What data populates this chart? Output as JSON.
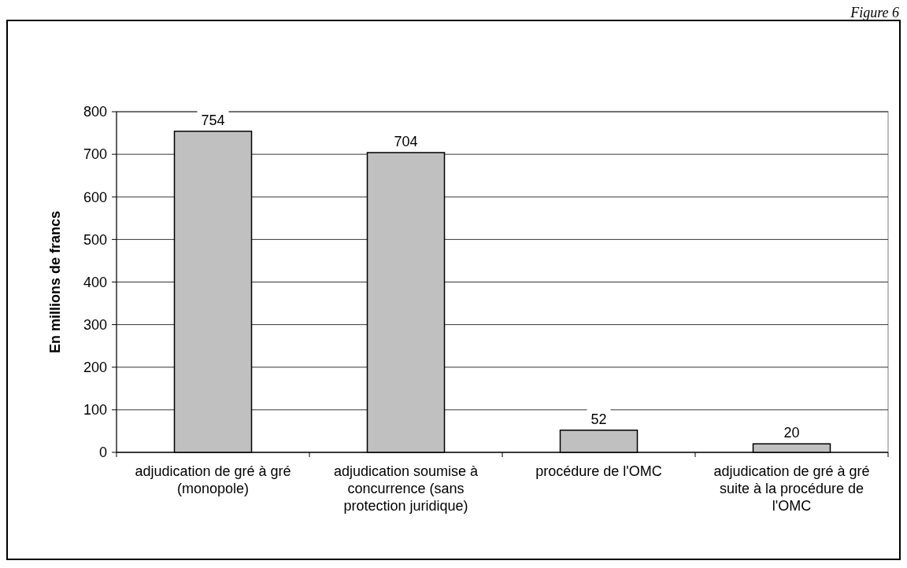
{
  "chart_data": {
    "type": "bar",
    "ylabel": "En millions de francs",
    "categories": [
      "adjudication de gré à gré (monopole)",
      "adjudication soumise à concurrence (sans protection juridique)",
      "procédure de l'OMC",
      "adjudication de gré à gré suite à la procédure de l'OMC"
    ],
    "values": [
      754,
      704,
      52,
      20
    ],
    "color": "#c0c0c0",
    "data_labels": true,
    "ylim": [
      0,
      800
    ],
    "yticks": [
      0,
      100,
      200,
      300,
      400,
      500,
      600,
      700,
      800
    ],
    "grid": "y",
    "annotations": [
      "Figure 6"
    ]
  }
}
